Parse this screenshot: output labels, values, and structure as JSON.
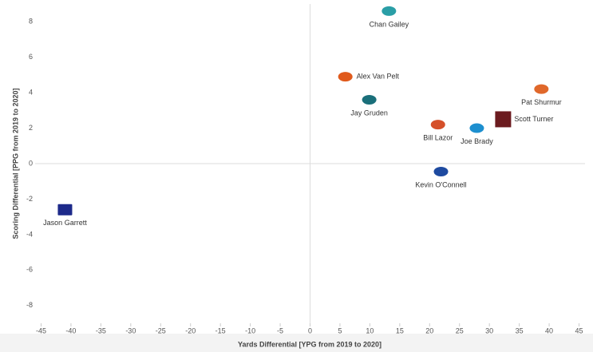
{
  "chart_data": {
    "type": "scatter",
    "x_label": "Yards Differential [YPG from 2019 to 2020]",
    "y_label": "Scoring Differential [PPG from 2019 to 2020]",
    "labels": [
      "Chan Gailey",
      "Alex Van Pelt",
      "Jay Gruden",
      "Bill Lazor",
      "Joe Brady",
      "Scott Turner",
      "Pat Shurmur",
      "Kevin O'Connell",
      "Jason Garrett"
    ],
    "x": [
      13.2,
      5.9,
      9.9,
      21.4,
      27.9,
      32.3,
      38.7,
      21.9,
      -41.0
    ],
    "values": [
      8.6,
      4.9,
      3.6,
      2.2,
      2.0,
      2.5,
      4.2,
      -0.45,
      -2.6
    ],
    "colors": [
      "#2a9ea6",
      "#e05a1c",
      "#1a6f7a",
      "#d5502a",
      "#1d8fcf",
      "#6b1b1f",
      "#e0682b",
      "#1e4aa0",
      "#1d2a8a"
    ],
    "xlim": [
      -46,
      46
    ],
    "ylim": [
      -9,
      9
    ],
    "xticks": [
      -45,
      -40,
      -35,
      -30,
      -25,
      -20,
      -15,
      -10,
      -5,
      0,
      5,
      10,
      15,
      20,
      25,
      30,
      35,
      40,
      45
    ],
    "yticks": [
      -8,
      -6,
      -4,
      -2,
      0,
      2,
      4,
      6,
      8
    ]
  }
}
